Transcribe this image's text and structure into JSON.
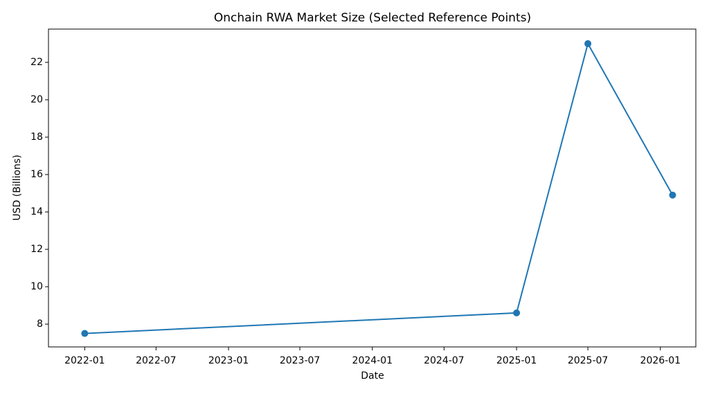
{
  "chart_data": {
    "type": "line",
    "title": "Onchain RWA Market Size (Selected Reference Points)",
    "x_label": "Date",
    "y_label": "USD (Billions)",
    "x": [
      "2022-01",
      "2025-01",
      "2025-07",
      "2026-02"
    ],
    "series": [
      {
        "name": "Onchain RWA Market Size",
        "color": "#1f77b4",
        "values": [
          7.5,
          8.6,
          23.0,
          14.9
        ]
      }
    ],
    "xlim": [
      "2021-10",
      "2026-04"
    ],
    "xticks": [
      "2022-01",
      "2022-07",
      "2023-01",
      "2023-07",
      "2024-01",
      "2024-07",
      "2025-01",
      "2025-07",
      "2026-01"
    ],
    "ylim": [
      6.78,
      23.78
    ],
    "yticks": [
      8,
      10,
      12,
      14,
      16,
      18,
      20,
      22
    ],
    "grid": false,
    "markers": true
  }
}
